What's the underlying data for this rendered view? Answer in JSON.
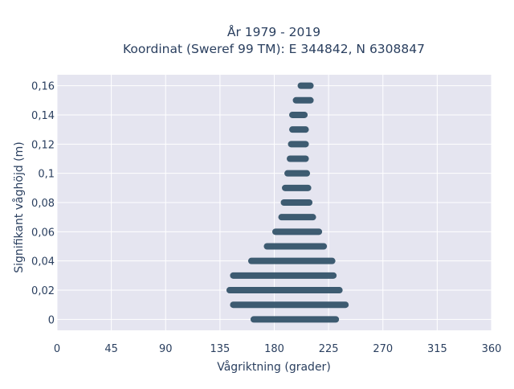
{
  "chart_data": {
    "type": "scatter",
    "title_line1": "År 1979 - 2019",
    "title_line2": "Koordinat (Sweref 99 TM): E 344842, N 6308847",
    "xlabel": "Vågriktning (grader)",
    "ylabel": "Signifikant våghöjd (m)",
    "xlim": [
      0,
      360
    ],
    "ylim": [
      -0.0075,
      0.1675
    ],
    "x_ticks": [
      0,
      45,
      90,
      135,
      180,
      225,
      270,
      315,
      360
    ],
    "x_tick_labels": [
      "0",
      "45",
      "90",
      "135",
      "180",
      "225",
      "270",
      "315",
      "360"
    ],
    "y_ticks": [
      0,
      0.02,
      0.04,
      0.06,
      0.08,
      0.1,
      0.12,
      0.14,
      0.16
    ],
    "y_tick_labels": [
      "0",
      "0,02",
      "0,04",
      "0,06",
      "0,08",
      "0,1",
      "0,12",
      "0,14",
      "0,16"
    ],
    "grid": true,
    "legend": "none",
    "colors": {
      "plot_bg": "#e5e5f0",
      "grid": "#ffffff",
      "marker": "#2f4f66",
      "text": "#2a3f5f"
    },
    "bands": [
      {
        "y": 0,
        "x_min": 163,
        "x_max": 231
      },
      {
        "y": 0.01,
        "x_min": 146,
        "x_max": 239
      },
      {
        "y": 0.02,
        "x_min": 143,
        "x_max": 234
      },
      {
        "y": 0.03,
        "x_min": 146,
        "x_max": 229
      },
      {
        "y": 0.04,
        "x_min": 161,
        "x_max": 228
      },
      {
        "y": 0.05,
        "x_min": 174,
        "x_max": 221
      },
      {
        "y": 0.06,
        "x_min": 181,
        "x_max": 217
      },
      {
        "y": 0.07,
        "x_min": 186,
        "x_max": 212
      },
      {
        "y": 0.08,
        "x_min": 188,
        "x_max": 209
      },
      {
        "y": 0.09,
        "x_min": 189,
        "x_max": 208
      },
      {
        "y": 0.1,
        "x_min": 191,
        "x_max": 207
      },
      {
        "y": 0.11,
        "x_min": 193,
        "x_max": 206
      },
      {
        "y": 0.12,
        "x_min": 194,
        "x_max": 206
      },
      {
        "y": 0.13,
        "x_min": 195,
        "x_max": 206
      },
      {
        "y": 0.14,
        "x_min": 195,
        "x_max": 205
      },
      {
        "y": 0.15,
        "x_min": 198,
        "x_max": 210
      },
      {
        "y": 0.16,
        "x_min": 202,
        "x_max": 210
      }
    ]
  }
}
